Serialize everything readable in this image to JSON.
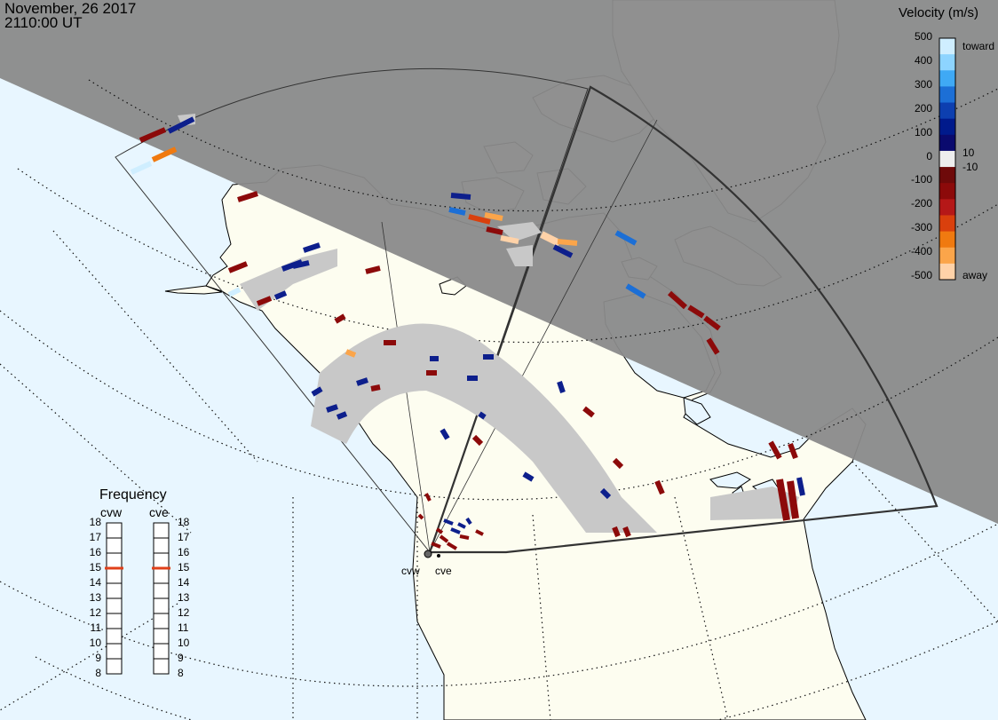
{
  "header": {
    "date": "November, 26 2017",
    "time": "2110:00 UT"
  },
  "velocity_scale": {
    "title": "Velocity (m/s)",
    "ticks": [
      "500",
      "400",
      "300",
      "200",
      "100",
      "10",
      "0",
      "-10",
      "-100",
      "-200",
      "-300",
      "-400",
      "-500"
    ],
    "toward_label": "toward",
    "away_label": "away",
    "colors": [
      "#cfeeff",
      "#8dd4ff",
      "#3fa9f5",
      "#1c6fd6",
      "#0d3fb0",
      "#001a8c",
      "#0a0a6e",
      "#eeeeee",
      "#6e0a0a",
      "#8c0a0a",
      "#b51818",
      "#d9400d",
      "#f07a10",
      "#fba54a",
      "#ffd2a8"
    ]
  },
  "frequency_panel": {
    "title": "Frequency",
    "radars": [
      {
        "name": "cvw",
        "frequency_mhz": 15
      },
      {
        "name": "cve",
        "frequency_mhz": 15
      }
    ],
    "ticks": [
      "18",
      "17",
      "16",
      "15",
      "14",
      "13",
      "12",
      "11",
      "10",
      "9",
      "8"
    ],
    "marker_color": "#e0401a"
  },
  "stations": [
    "cvw",
    "cve"
  ],
  "map": {
    "ocean_color": "#e8f6ff",
    "land_color": "#fdfdf0",
    "night_color": "#8a8a8a",
    "ground_scatter_color": "#c8c8c8"
  }
}
